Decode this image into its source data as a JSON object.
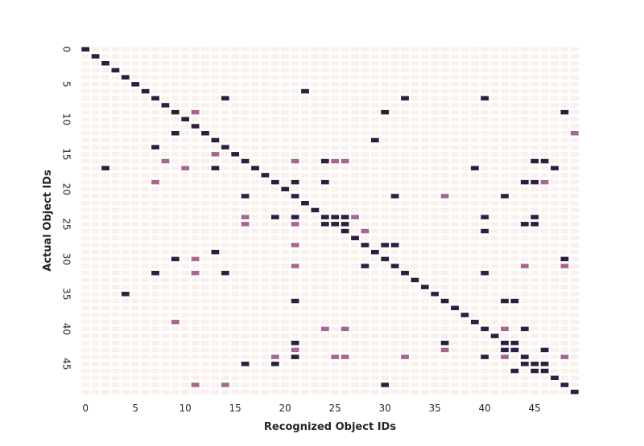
{
  "chart_data": {
    "type": "heatmap",
    "title": "",
    "xlabel": "Recognized Object IDs",
    "ylabel": "Actual Object IDs",
    "n_rows": 50,
    "n_cols": 50,
    "xticks": [
      0,
      5,
      10,
      15,
      20,
      25,
      30,
      35,
      40,
      45
    ],
    "yticks": [
      0,
      5,
      10,
      15,
      20,
      25,
      30,
      35,
      40,
      45
    ],
    "colorbar": false,
    "value_scale": "0 = empty, 1 = low count, 2 = high count",
    "colors": {
      "background": "#ffffff",
      "empty_cell": "#faf0ec",
      "low": "#a8668f",
      "high": "#2d1e3e"
    },
    "cells": [
      [
        0,
        0,
        2
      ],
      [
        1,
        1,
        2
      ],
      [
        2,
        2,
        2
      ],
      [
        3,
        3,
        2
      ],
      [
        4,
        4,
        2
      ],
      [
        5,
        5,
        2
      ],
      [
        6,
        6,
        2
      ],
      [
        6,
        22,
        2
      ],
      [
        7,
        7,
        2
      ],
      [
        7,
        14,
        2
      ],
      [
        7,
        32,
        2
      ],
      [
        7,
        40,
        2
      ],
      [
        8,
        8,
        2
      ],
      [
        9,
        9,
        2
      ],
      [
        9,
        11,
        1
      ],
      [
        9,
        30,
        2
      ],
      [
        9,
        48,
        2
      ],
      [
        10,
        10,
        2
      ],
      [
        11,
        11,
        2
      ],
      [
        12,
        9,
        2
      ],
      [
        12,
        12,
        2
      ],
      [
        12,
        49,
        1
      ],
      [
        13,
        13,
        2
      ],
      [
        13,
        29,
        2
      ],
      [
        14,
        7,
        2
      ],
      [
        14,
        14,
        2
      ],
      [
        15,
        13,
        1
      ],
      [
        15,
        15,
        2
      ],
      [
        16,
        8,
        1
      ],
      [
        16,
        16,
        2
      ],
      [
        16,
        21,
        1
      ],
      [
        16,
        24,
        2
      ],
      [
        16,
        25,
        1
      ],
      [
        16,
        26,
        1
      ],
      [
        16,
        45,
        2
      ],
      [
        16,
        46,
        2
      ],
      [
        17,
        2,
        2
      ],
      [
        17,
        10,
        1
      ],
      [
        17,
        13,
        2
      ],
      [
        17,
        17,
        2
      ],
      [
        17,
        39,
        2
      ],
      [
        17,
        47,
        2
      ],
      [
        18,
        18,
        2
      ],
      [
        19,
        7,
        1
      ],
      [
        19,
        19,
        2
      ],
      [
        19,
        21,
        2
      ],
      [
        19,
        24,
        2
      ],
      [
        19,
        44,
        2
      ],
      [
        19,
        45,
        2
      ],
      [
        19,
        46,
        1
      ],
      [
        20,
        20,
        2
      ],
      [
        21,
        16,
        2
      ],
      [
        21,
        21,
        2
      ],
      [
        21,
        31,
        2
      ],
      [
        21,
        36,
        1
      ],
      [
        21,
        42,
        2
      ],
      [
        22,
        22,
        2
      ],
      [
        23,
        23,
        2
      ],
      [
        24,
        16,
        1
      ],
      [
        24,
        19,
        2
      ],
      [
        24,
        21,
        2
      ],
      [
        24,
        24,
        2
      ],
      [
        24,
        25,
        2
      ],
      [
        24,
        26,
        2
      ],
      [
        24,
        27,
        1
      ],
      [
        24,
        40,
        2
      ],
      [
        24,
        45,
        2
      ],
      [
        25,
        16,
        1
      ],
      [
        25,
        21,
        1
      ],
      [
        25,
        24,
        2
      ],
      [
        25,
        25,
        2
      ],
      [
        25,
        26,
        2
      ],
      [
        25,
        44,
        2
      ],
      [
        25,
        45,
        2
      ],
      [
        26,
        26,
        2
      ],
      [
        26,
        28,
        1
      ],
      [
        26,
        40,
        2
      ],
      [
        27,
        27,
        2
      ],
      [
        28,
        21,
        1
      ],
      [
        28,
        28,
        2
      ],
      [
        28,
        30,
        2
      ],
      [
        28,
        31,
        2
      ],
      [
        29,
        13,
        2
      ],
      [
        29,
        29,
        2
      ],
      [
        30,
        9,
        2
      ],
      [
        30,
        11,
        1
      ],
      [
        30,
        30,
        2
      ],
      [
        30,
        48,
        2
      ],
      [
        31,
        21,
        1
      ],
      [
        31,
        28,
        2
      ],
      [
        31,
        31,
        2
      ],
      [
        31,
        44,
        1
      ],
      [
        31,
        48,
        1
      ],
      [
        32,
        7,
        2
      ],
      [
        32,
        11,
        1
      ],
      [
        32,
        14,
        2
      ],
      [
        32,
        32,
        2
      ],
      [
        32,
        40,
        2
      ],
      [
        33,
        33,
        2
      ],
      [
        34,
        34,
        2
      ],
      [
        35,
        4,
        2
      ],
      [
        35,
        35,
        2
      ],
      [
        36,
        21,
        2
      ],
      [
        36,
        36,
        2
      ],
      [
        36,
        42,
        2
      ],
      [
        36,
        43,
        2
      ],
      [
        37,
        37,
        2
      ],
      [
        38,
        38,
        2
      ],
      [
        39,
        9,
        1
      ],
      [
        39,
        39,
        2
      ],
      [
        40,
        24,
        1
      ],
      [
        40,
        26,
        1
      ],
      [
        40,
        40,
        2
      ],
      [
        40,
        42,
        1
      ],
      [
        40,
        44,
        2
      ],
      [
        41,
        41,
        2
      ],
      [
        42,
        21,
        2
      ],
      [
        42,
        36,
        2
      ],
      [
        42,
        42,
        2
      ],
      [
        42,
        43,
        2
      ],
      [
        43,
        21,
        1
      ],
      [
        43,
        36,
        1
      ],
      [
        43,
        42,
        2
      ],
      [
        43,
        43,
        2
      ],
      [
        43,
        46,
        2
      ],
      [
        44,
        19,
        1
      ],
      [
        44,
        21,
        2
      ],
      [
        44,
        25,
        1
      ],
      [
        44,
        26,
        1
      ],
      [
        44,
        32,
        1
      ],
      [
        44,
        40,
        2
      ],
      [
        44,
        42,
        1
      ],
      [
        44,
        44,
        2
      ],
      [
        44,
        48,
        1
      ],
      [
        45,
        16,
        2
      ],
      [
        45,
        19,
        2
      ],
      [
        45,
        44,
        2
      ],
      [
        45,
        45,
        2
      ],
      [
        45,
        46,
        2
      ],
      [
        46,
        43,
        2
      ],
      [
        46,
        45,
        2
      ],
      [
        46,
        46,
        2
      ],
      [
        47,
        47,
        2
      ],
      [
        48,
        11,
        1
      ],
      [
        48,
        14,
        1
      ],
      [
        48,
        30,
        2
      ],
      [
        48,
        48,
        2
      ],
      [
        49,
        49,
        2
      ]
    ]
  }
}
